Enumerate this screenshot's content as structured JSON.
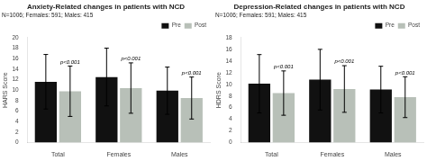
{
  "chart_data": [
    {
      "type": "bar",
      "title": "Anxiety-Related changes in patients with NCD",
      "ylabel": "HARS Score",
      "annotations": [
        "N=1006; Females: 591; Males: 415"
      ],
      "categories": [
        "Total",
        "Females",
        "Males"
      ],
      "series": [
        {
          "name": "Pre",
          "color": "#111111",
          "values": [
            11.6,
            12.5,
            9.9
          ],
          "errors": [
            5.2,
            5.5,
            4.5
          ]
        },
        {
          "name": "Post",
          "color": "#b8c0b8",
          "values": [
            9.8,
            10.4,
            8.5
          ],
          "errors": [
            4.8,
            4.8,
            4.0
          ],
          "pvalues": [
            "p<0.001",
            "p<0.001",
            "p<0.001"
          ]
        }
      ],
      "ylim": [
        0,
        20
      ],
      "yticks": [
        0,
        2,
        4,
        6,
        8,
        10,
        12,
        14,
        16,
        18,
        20
      ],
      "grid": false,
      "legend": "upper right"
    },
    {
      "type": "bar",
      "title": "Depression-Related changes in patients with NCD",
      "ylabel": "HDRS Score",
      "annotations": [
        "N=1006; Females: 591; Males: 415"
      ],
      "categories": [
        "Total",
        "Females",
        "Males"
      ],
      "series": [
        {
          "name": "Pre",
          "color": "#111111",
          "values": [
            10.1,
            10.8,
            9.1
          ],
          "errors": [
            5.0,
            5.2,
            4.0
          ]
        },
        {
          "name": "Post",
          "color": "#b8c0b8",
          "values": [
            8.5,
            9.2,
            7.8
          ],
          "errors": [
            3.8,
            4.0,
            3.5
          ],
          "pvalues": [
            "p<0.001",
            "p<0.001",
            "p<0.001"
          ]
        }
      ],
      "ylim": [
        0,
        18
      ],
      "yticks": [
        0,
        2,
        4,
        6,
        8,
        10,
        12,
        14,
        16,
        18
      ],
      "grid": false,
      "legend": "upper right"
    }
  ]
}
